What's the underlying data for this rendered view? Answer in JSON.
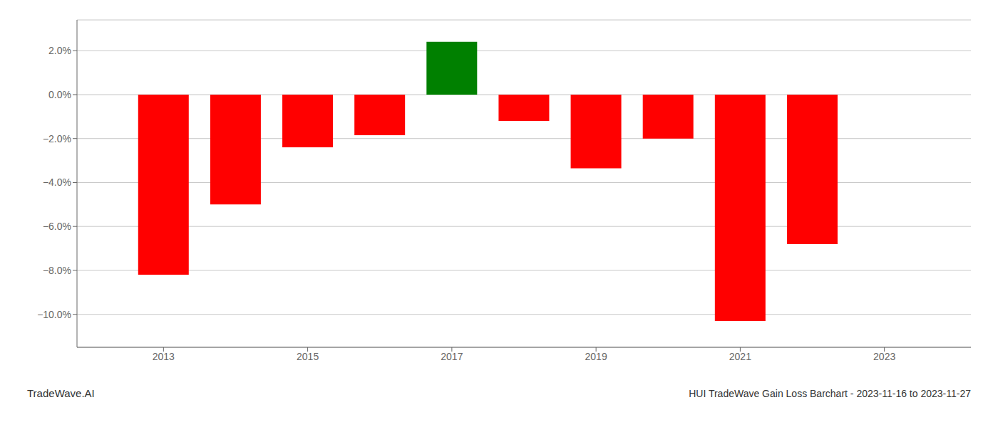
{
  "chart_data": {
    "type": "bar",
    "title": "HUI TradeWave Gain Loss Barchart - 2023-11-16 to 2023-11-27",
    "annotations": [
      "TradeWave.AI"
    ],
    "x": [
      2013,
      2014,
      2015,
      2016,
      2017,
      2018,
      2019,
      2020,
      2021,
      2022
    ],
    "values": [
      -0.082,
      -0.05,
      -0.024,
      -0.0185,
      0.024,
      -0.012,
      -0.0335,
      -0.02,
      -0.103,
      -0.068
    ],
    "colors": [
      "#ff0000",
      "#ff0000",
      "#ff0000",
      "#ff0000",
      "#008000",
      "#ff0000",
      "#ff0000",
      "#ff0000",
      "#ff0000",
      "#ff0000"
    ],
    "xlim": [
      2011.8,
      2024.2
    ],
    "xticks": [
      2013,
      2015,
      2017,
      2019,
      2021,
      2023
    ],
    "ylim": [
      -0.115,
      0.034
    ],
    "yticks": [
      {
        "value": -0.1,
        "label": "−10.0%"
      },
      {
        "value": -0.08,
        "label": "−8.0%"
      },
      {
        "value": -0.06,
        "label": "−6.0%"
      },
      {
        "value": -0.04,
        "label": "−4.0%"
      },
      {
        "value": -0.02,
        "label": "−2.0%"
      },
      {
        "value": 0.0,
        "label": "0.0%"
      },
      {
        "value": 0.02,
        "label": "2.0%"
      }
    ],
    "grid": true
  }
}
